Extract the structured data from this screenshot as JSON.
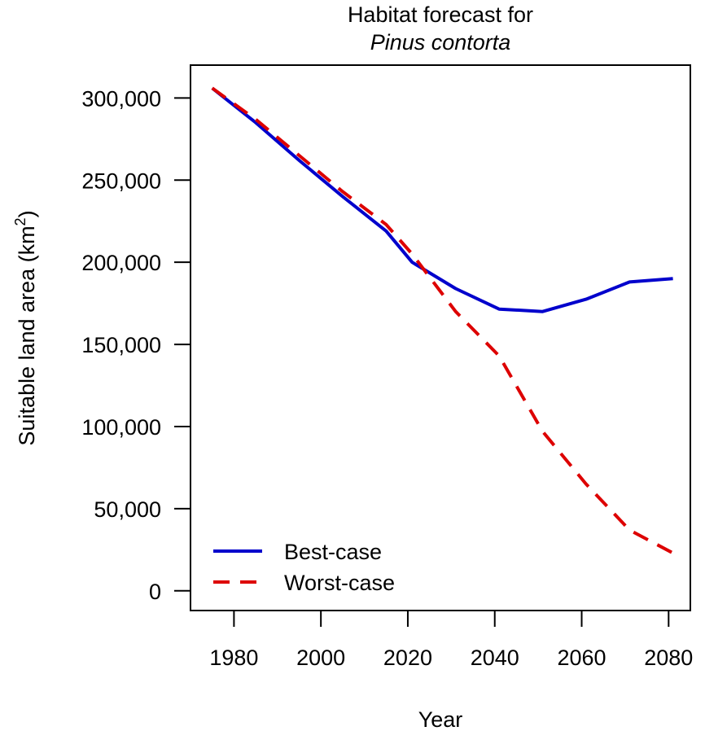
{
  "chart_data": {
    "type": "line",
    "title_line1": "Habitat forecast for",
    "title_line2": "Pinus contorta",
    "xlabel": "Year",
    "ylabel_prefix": "Suitable land area (km",
    "ylabel_sup": "2",
    "ylabel_suffix": ")",
    "xlim": [
      1970,
      2085
    ],
    "ylim": [
      -12000,
      320000
    ],
    "x_ticks": [
      1980,
      2000,
      2020,
      2040,
      2060,
      2080
    ],
    "x_tick_labels": [
      "1980",
      "2000",
      "2020",
      "2040",
      "2060",
      "2080"
    ],
    "y_ticks": [
      0,
      50000,
      100000,
      150000,
      200000,
      250000,
      300000
    ],
    "y_tick_labels": [
      "0",
      "50,000",
      "100,000",
      "150,000",
      "200,000",
      "250,000",
      "300,000"
    ],
    "grid": false,
    "legend_position": "bottom-left",
    "series": [
      {
        "name": "Best-case",
        "color": "#0000cc",
        "dash": "solid",
        "x": [
          1975,
          1985,
          1995,
          2005,
          2015,
          2021,
          2031,
          2041,
          2051,
          2061,
          2071,
          2081
        ],
        "y": [
          306000,
          285000,
          262000,
          240000,
          219000,
          200000,
          184000,
          171500,
          170000,
          177500,
          188000,
          190000
        ]
      },
      {
        "name": "Worst-case",
        "color": "#dd0000",
        "dash": "dashed",
        "x": [
          1975,
          1985,
          1995,
          2005,
          2015,
          2021,
          2031,
          2041,
          2051,
          2061,
          2071,
          2081
        ],
        "y": [
          306000,
          287000,
          265000,
          243000,
          223000,
          205000,
          170000,
          143000,
          97000,
          65000,
          37000,
          23000
        ]
      }
    ]
  }
}
